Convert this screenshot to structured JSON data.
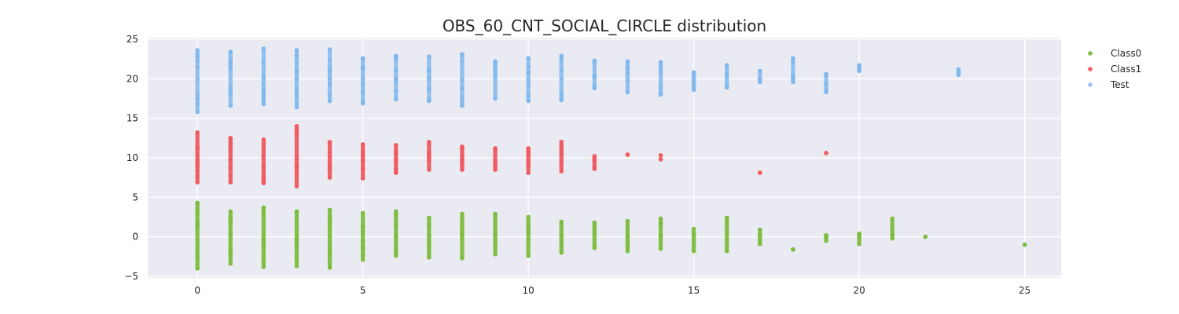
{
  "chart_data": {
    "type": "scatter",
    "title": "OBS_60_CNT_SOCIAL_CIRCLE distribution",
    "xlabel": "",
    "ylabel": "",
    "xlim": [
      -1.5,
      26.1
    ],
    "ylim": [
      -5.2,
      25.2
    ],
    "xticks": [
      0,
      5,
      10,
      15,
      20,
      25
    ],
    "yticks": [
      -5,
      0,
      5,
      10,
      15,
      20,
      25
    ],
    "grid": true,
    "legend_position": "upper-right-outside",
    "series": [
      {
        "name": "Class0",
        "color": "#7ebd3f",
        "offset": 0,
        "points": [
          {
            "x": 0,
            "min": -4.0,
            "max": 4.3
          },
          {
            "x": 1,
            "min": -3.4,
            "max": 3.2
          },
          {
            "x": 2,
            "min": -3.8,
            "max": 3.7
          },
          {
            "x": 3,
            "min": -3.7,
            "max": 3.2
          },
          {
            "x": 4,
            "min": -3.9,
            "max": 3.4
          },
          {
            "x": 5,
            "min": -2.9,
            "max": 3.0
          },
          {
            "x": 6,
            "min": -2.4,
            "max": 3.2
          },
          {
            "x": 7,
            "min": -2.6,
            "max": 2.4
          },
          {
            "x": 8,
            "min": -2.7,
            "max": 2.9
          },
          {
            "x": 9,
            "min": -2.2,
            "max": 2.9
          },
          {
            "x": 10,
            "min": -2.4,
            "max": 2.5
          },
          {
            "x": 11,
            "min": -2.0,
            "max": 1.9
          },
          {
            "x": 12,
            "min": -1.4,
            "max": 1.8
          },
          {
            "x": 13,
            "min": -1.8,
            "max": 2.0
          },
          {
            "x": 14,
            "min": -1.5,
            "max": 2.3
          },
          {
            "x": 15,
            "min": -1.8,
            "max": 1.0
          },
          {
            "x": 16,
            "min": -1.8,
            "max": 2.4
          },
          {
            "x": 17,
            "min": -0.9,
            "max": 0.9
          },
          {
            "x": 18,
            "min": -1.6,
            "max": -1.6
          },
          {
            "x": 19,
            "min": -0.5,
            "max": 0.2
          },
          {
            "x": 20,
            "min": -0.9,
            "max": 0.4
          },
          {
            "x": 21,
            "min": -0.2,
            "max": 2.3
          },
          {
            "x": 22,
            "min": 0.0,
            "max": 0.0
          },
          {
            "x": 25,
            "min": -1.0,
            "max": -1.0
          }
        ]
      },
      {
        "name": "Class1",
        "color": "#f05b62",
        "offset": 10,
        "points": [
          {
            "x": 0,
            "min": 6.9,
            "max": 13.2
          },
          {
            "x": 1,
            "min": 6.9,
            "max": 12.5
          },
          {
            "x": 2,
            "min": 6.8,
            "max": 12.3
          },
          {
            "x": 3,
            "min": 6.4,
            "max": 14.0
          },
          {
            "x": 4,
            "min": 7.5,
            "max": 12.0
          },
          {
            "x": 5,
            "min": 7.4,
            "max": 11.7
          },
          {
            "x": 6,
            "min": 8.1,
            "max": 11.6
          },
          {
            "x": 7,
            "min": 8.5,
            "max": 12.0
          },
          {
            "x": 8,
            "min": 8.5,
            "max": 11.4
          },
          {
            "x": 9,
            "min": 8.5,
            "max": 11.2
          },
          {
            "x": 10,
            "min": 8.1,
            "max": 11.2
          },
          {
            "x": 11,
            "min": 8.3,
            "max": 12.0
          },
          {
            "x": 12,
            "min": 8.6,
            "max": 10.2
          },
          {
            "x": 13,
            "min": 10.4,
            "max": 10.4
          },
          {
            "x": 14,
            "min": 9.8,
            "max": 10.3
          },
          {
            "x": 17,
            "min": 8.1,
            "max": 8.1
          },
          {
            "x": 19,
            "min": 10.6,
            "max": 10.6
          }
        ]
      },
      {
        "name": "Test",
        "color": "#80b8ee",
        "offset": 20,
        "points": [
          {
            "x": 0,
            "min": 15.8,
            "max": 23.6
          },
          {
            "x": 1,
            "min": 16.6,
            "max": 23.4
          },
          {
            "x": 2,
            "min": 16.8,
            "max": 23.8
          },
          {
            "x": 3,
            "min": 16.4,
            "max": 23.6
          },
          {
            "x": 4,
            "min": 17.2,
            "max": 23.7
          },
          {
            "x": 5,
            "min": 16.9,
            "max": 22.6
          },
          {
            "x": 6,
            "min": 17.4,
            "max": 22.9
          },
          {
            "x": 7,
            "min": 17.2,
            "max": 22.8
          },
          {
            "x": 8,
            "min": 16.6,
            "max": 23.1
          },
          {
            "x": 9,
            "min": 17.5,
            "max": 22.2
          },
          {
            "x": 10,
            "min": 17.2,
            "max": 22.6
          },
          {
            "x": 11,
            "min": 17.3,
            "max": 22.9
          },
          {
            "x": 12,
            "min": 18.8,
            "max": 22.3
          },
          {
            "x": 13,
            "min": 18.3,
            "max": 22.2
          },
          {
            "x": 14,
            "min": 18.0,
            "max": 22.1
          },
          {
            "x": 15,
            "min": 18.6,
            "max": 20.8
          },
          {
            "x": 16,
            "min": 18.9,
            "max": 21.7
          },
          {
            "x": 17,
            "min": 19.6,
            "max": 21.0
          },
          {
            "x": 18,
            "min": 19.6,
            "max": 22.6
          },
          {
            "x": 19,
            "min": 18.3,
            "max": 20.6
          },
          {
            "x": 20,
            "min": 21.0,
            "max": 21.7
          },
          {
            "x": 23,
            "min": 20.5,
            "max": 21.2
          }
        ]
      }
    ]
  }
}
